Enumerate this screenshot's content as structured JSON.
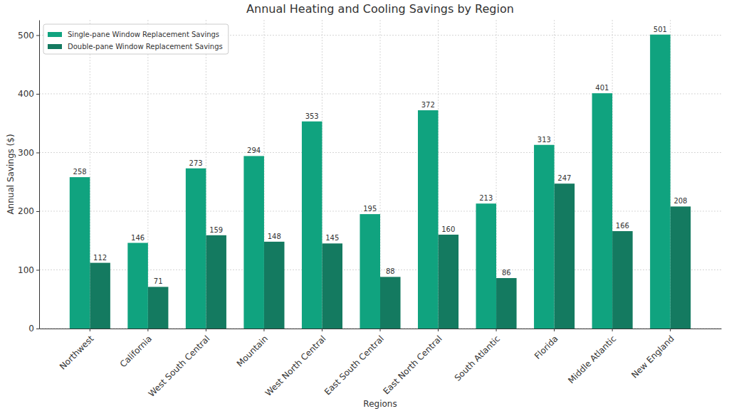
{
  "chart_data": {
    "type": "bar",
    "title": "Annual Heating and Cooling Savings by Region",
    "x_label": "Regions",
    "y_label": "Annual Savings ($)",
    "categories": [
      "Northwest",
      "California",
      "West South Central",
      "Mountain",
      "West North Central",
      "East South Central",
      "East North Central",
      "South Atlantic",
      "Florida",
      "Middle Atlantic",
      "New England"
    ],
    "series": [
      {
        "name": "Single-pane Window Replacement Savings",
        "color": "#10a37f",
        "values": [
          258,
          146,
          273,
          294,
          353,
          195,
          372,
          213,
          313,
          401,
          501
        ]
      },
      {
        "name": "Double-pane Window Replacement Savings",
        "color": "#147a60",
        "values": [
          112,
          71,
          159,
          148,
          145,
          88,
          160,
          86,
          247,
          166,
          208
        ]
      }
    ],
    "ylim": [
      0,
      526
    ],
    "yticks": [
      0,
      100,
      200,
      300,
      400,
      500
    ],
    "grid": true,
    "legend": "upper left",
    "data_labels": true
  }
}
